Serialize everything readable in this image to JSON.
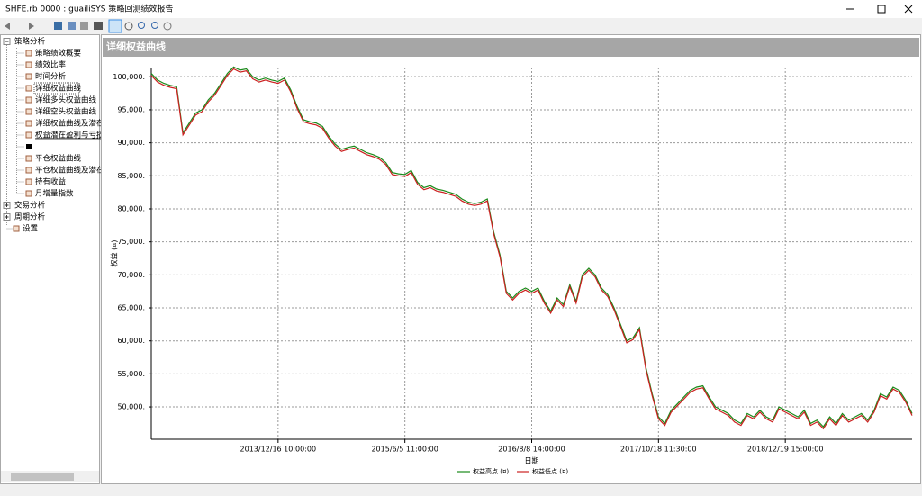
{
  "window": {
    "title": "SHFE.rb 0000 : guailiSYS 策略回测绩效报告"
  },
  "tree": [
    {
      "label": "策略分析",
      "children": [
        "策略绩效概要",
        "绩效比率",
        "时间分析",
        "详细权益曲线",
        "详细多头权益曲线",
        "详细空头权益曲线",
        "详细权益曲线及潜在",
        "权益潜在盈利与亏损",
        null,
        "平仓权益曲线",
        "平仓权益曲线及潜在",
        "持有收益",
        "月增量指数"
      ]
    },
    {
      "label": "交易分析"
    },
    {
      "label": "周期分析"
    },
    {
      "label": "设置"
    }
  ],
  "panel": {
    "title": "详细权益曲线"
  },
  "chart_data": {
    "type": "line",
    "ylabel": "权益 (¤)",
    "xlabel": "日期",
    "xlim": [
      0,
      120
    ],
    "xticks": [
      {
        "value": 20,
        "label": "2013/12/16 10:00:00"
      },
      {
        "value": 40,
        "label": "2015/6/5 11:00:00"
      },
      {
        "value": 60,
        "label": "2016/8/8 14:00:00"
      },
      {
        "value": 80,
        "label": "2017/10/18 11:30:00"
      },
      {
        "value": 100,
        "label": "2018/12/19 15:00:00"
      }
    ],
    "ylim": [
      45100,
      101400
    ],
    "yticks": [
      {
        "value": 50000,
        "label": "50,000."
      },
      {
        "value": 55000,
        "label": "55,000."
      },
      {
        "value": 60000,
        "label": "60,000."
      },
      {
        "value": 65000,
        "label": "65,000."
      },
      {
        "value": 70000,
        "label": "70,000."
      },
      {
        "value": 75000,
        "label": "75,000."
      },
      {
        "value": 80000,
        "label": "80,000."
      },
      {
        "value": 85000,
        "label": "85,000."
      },
      {
        "value": 90000,
        "label": "90,000."
      },
      {
        "value": 95000,
        "label": "95,000."
      },
      {
        "value": 100000,
        "label": "100,000."
      }
    ],
    "grid": true,
    "legend": "bottom",
    "series": [
      {
        "name": "权益高点 (¤)",
        "color": "#1a8a1a",
        "values": [
          100500,
          99500,
          99000,
          98700,
          98500,
          91500,
          93000,
          94500,
          95000,
          96500,
          97500,
          99000,
          100500,
          101500,
          101000,
          101200,
          100000,
          99500,
          99800,
          99500,
          99300,
          99800,
          98000,
          95500,
          93500,
          93200,
          93000,
          92500,
          91000,
          89800,
          89000,
          89300,
          89500,
          89000,
          88500,
          88200,
          87800,
          87000,
          85500,
          85300,
          85200,
          85800,
          84000,
          83200,
          83500,
          83000,
          82800,
          82500,
          82200,
          81500,
          81000,
          80800,
          81000,
          81500,
          76500,
          73000,
          67500,
          66500,
          67500,
          68000,
          67500,
          68000,
          66000,
          64500,
          66500,
          65500,
          68500,
          66000,
          70000,
          71000,
          70000,
          68000,
          67000,
          65000,
          62500,
          60000,
          60500,
          62000,
          56000,
          52000,
          48500,
          47500,
          49500,
          50500,
          51500,
          52500,
          53000,
          53200,
          51500,
          50000,
          49500,
          49000,
          48000,
          47500,
          49000,
          48500,
          49500,
          48500,
          48000,
          50000,
          49500,
          49000,
          48500,
          49500,
          47500,
          48000,
          47000,
          48500,
          47500,
          49000,
          48000,
          48500,
          49000,
          48000,
          49500,
          52000,
          51500,
          53000,
          52500,
          51000,
          49000
        ]
      },
      {
        "name": "权益低点 (¤)",
        "color": "#cc2020",
        "values": [
          100200,
          99200,
          98700,
          98400,
          98200,
          91200,
          92700,
          94200,
          94700,
          96200,
          97200,
          98700,
          100200,
          101200,
          100700,
          100900,
          99700,
          99200,
          99500,
          99200,
          99000,
          99500,
          97700,
          95200,
          93200,
          92900,
          92700,
          92200,
          90700,
          89500,
          88700,
          89000,
          89200,
          88700,
          88200,
          87900,
          87500,
          86700,
          85200,
          85000,
          84900,
          85500,
          83700,
          82900,
          83200,
          82700,
          82500,
          82200,
          81900,
          81200,
          80700,
          80500,
          80700,
          81200,
          76200,
          72700,
          67200,
          66200,
          67200,
          67700,
          67200,
          67700,
          65700,
          64200,
          66200,
          65200,
          68200,
          65700,
          69700,
          70700,
          69700,
          67700,
          66700,
          64700,
          62200,
          59700,
          60200,
          61700,
          55700,
          51700,
          48200,
          47200,
          49200,
          50200,
          51200,
          52200,
          52700,
          52900,
          51200,
          49700,
          49200,
          48700,
          47700,
          47200,
          48700,
          48200,
          49200,
          48200,
          47700,
          49700,
          49200,
          48700,
          48200,
          49200,
          47200,
          47700,
          46700,
          48200,
          47200,
          48700,
          47700,
          48200,
          48700,
          47700,
          49200,
          51700,
          51200,
          52700,
          52200,
          50700,
          48700
        ]
      }
    ]
  }
}
